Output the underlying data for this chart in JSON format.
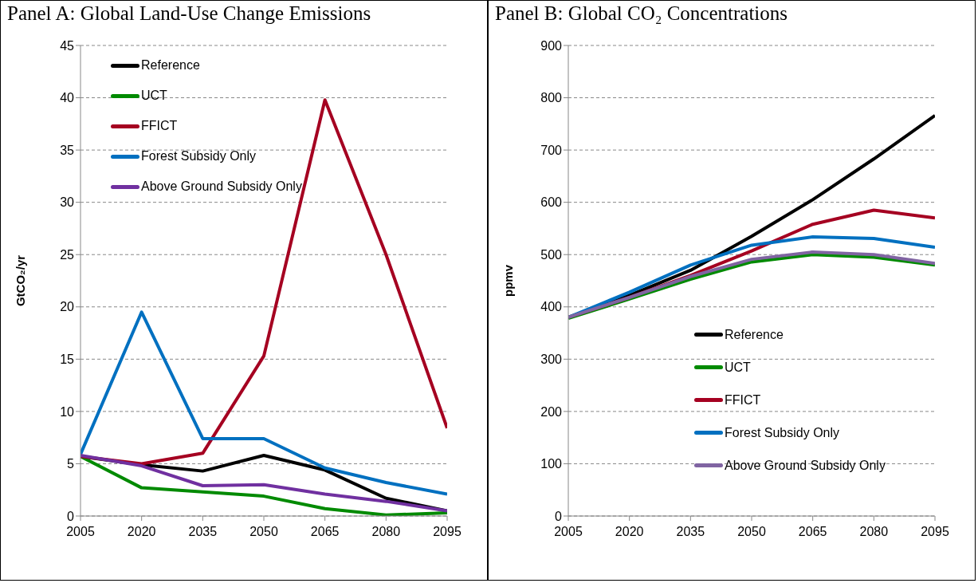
{
  "chart_data": [
    {
      "type": "line",
      "title": "Panel A: Global Land-Use Change Emissions",
      "ylabel": "GtCO₂/yr",
      "x": [
        2005,
        2020,
        2035,
        2050,
        2065,
        2080,
        2095
      ],
      "xlim": [
        2005,
        2095
      ],
      "xticks": [
        2005,
        2020,
        2035,
        2050,
        2065,
        2080,
        2095
      ],
      "ylim": [
        0,
        45
      ],
      "yticks": [
        0,
        5,
        10,
        15,
        20,
        25,
        30,
        35,
        40,
        45
      ],
      "grid": "y",
      "legend": "top left",
      "marker": "none",
      "line_style": "solid",
      "series": [
        {
          "name": "Reference",
          "color": "#000000",
          "values": [
            5.7,
            4.9,
            4.3,
            5.8,
            4.4,
            1.7,
            0.5
          ]
        },
        {
          "name": "UCT",
          "color": "#008a00",
          "values": [
            5.7,
            2.7,
            2.3,
            1.9,
            0.7,
            0.1,
            0.3
          ]
        },
        {
          "name": "FFICT",
          "color": "#a50021",
          "values": [
            5.7,
            5.0,
            6.0,
            15.3,
            39.8,
            25.0,
            8.4
          ]
        },
        {
          "name": "Forest Subsidy Only",
          "color": "#0070c0",
          "values": [
            5.9,
            19.5,
            7.4,
            7.4,
            4.6,
            3.2,
            2.1
          ]
        },
        {
          "name": "Above Ground Subsidy Only",
          "color": "#7030a0",
          "values": [
            5.8,
            4.8,
            2.9,
            3.0,
            2.1,
            1.4,
            0.5
          ]
        }
      ]
    },
    {
      "type": "line",
      "title": "Panel B: Global CO₂ Concentrations",
      "ylabel": "ppmv",
      "x": [
        2005,
        2020,
        2035,
        2050,
        2065,
        2080,
        2095
      ],
      "xlim": [
        2005,
        2095
      ],
      "xticks": [
        2005,
        2020,
        2035,
        2050,
        2065,
        2080,
        2095
      ],
      "ylim": [
        0,
        900
      ],
      "yticks": [
        0,
        100,
        200,
        300,
        400,
        500,
        600,
        700,
        800,
        900
      ],
      "grid": "y",
      "legend": "bottom",
      "marker": "none",
      "line_style": "solid",
      "series": [
        {
          "name": "Reference",
          "color": "#000000",
          "values": [
            380,
            422,
            470,
            535,
            605,
            683,
            766
          ]
        },
        {
          "name": "UCT",
          "color": "#008a00",
          "values": [
            378,
            415,
            453,
            486,
            500,
            495,
            480
          ]
        },
        {
          "name": "FFICT",
          "color": "#a50021",
          "values": [
            380,
            418,
            460,
            507,
            558,
            585,
            570
          ]
        },
        {
          "name": "Forest Subsidy Only",
          "color": "#0070c0",
          "values": [
            380,
            428,
            480,
            518,
            534,
            531,
            514
          ]
        },
        {
          "name": "Above Ground Subsidy Only",
          "color": "#8064a2",
          "values": [
            380,
            418,
            458,
            491,
            505,
            500,
            483
          ]
        }
      ]
    }
  ]
}
